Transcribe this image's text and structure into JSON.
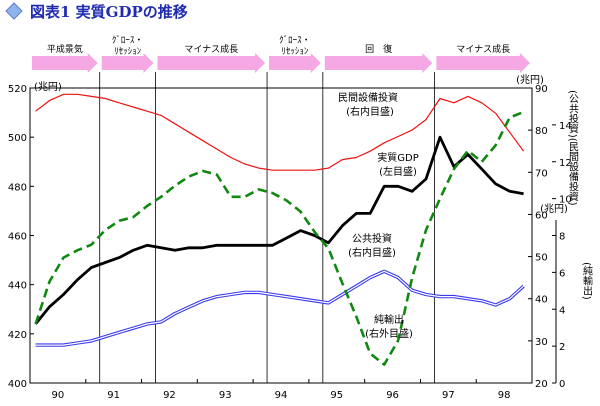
{
  "header": {
    "title": "図表1 実質GDPの推移"
  },
  "colors": {
    "phase_arrow": "#f6a8e4",
    "gdp": "#000000",
    "private_capex": "#ee1111",
    "public_investment": "#3a3af2",
    "net_exports": "#118811",
    "title": "#1f2bb0"
  },
  "chart_data": {
    "type": "line",
    "title": "図表1 実質GDPの推移",
    "x_axis": {
      "ticks": [
        "90",
        "91",
        "92",
        "93",
        "94",
        "95",
        "96",
        "97",
        "98"
      ],
      "range": [
        1989.5,
        1998.5
      ]
    },
    "axes": {
      "left": {
        "unit": "(兆円)",
        "range": [
          400,
          520
        ],
        "ticks": [
          400,
          420,
          440,
          460,
          480,
          500,
          520
        ]
      },
      "right_inner": {
        "unit": "(兆円)",
        "range": [
          20,
          90
        ],
        "ticks": [
          20,
          30,
          40,
          50,
          60,
          70,
          80,
          90
        ],
        "label": "(公共投資)(民間設備投資)"
      },
      "right_outer": {
        "unit": "(兆円)",
        "range": [
          0,
          16
        ],
        "ticks": [
          0,
          2,
          4,
          6,
          8,
          10,
          12,
          14
        ],
        "label": "(純輸出)"
      }
    },
    "phases": [
      {
        "label": "平成景気",
        "start": 1989.5,
        "end": 1990.75
      },
      {
        "label": "ｸﾞﾛｰｽ・ﾘｾｯｼｮﾝ",
        "start": 1990.75,
        "end": 1991.75
      },
      {
        "label": "マイナス成長",
        "start": 1991.75,
        "end": 1993.75
      },
      {
        "label": "ｸﾞﾛｰｽ・ﾘｾｯｼｮﾝ",
        "start": 1993.75,
        "end": 1994.75
      },
      {
        "label": "回　復",
        "start": 1994.75,
        "end": 1996.75
      },
      {
        "label": "マイナス成長",
        "start": 1996.75,
        "end": 1998.5
      }
    ],
    "series": [
      {
        "name": "実質GDP(左目盛)",
        "axis": "left",
        "style": "solid-thick",
        "x": [
          1989.6,
          1989.85,
          1990.1,
          1990.35,
          1990.6,
          1990.85,
          1991.1,
          1991.35,
          1991.6,
          1991.85,
          1992.1,
          1992.35,
          1992.6,
          1992.85,
          1993.1,
          1993.35,
          1993.6,
          1993.85,
          1994.1,
          1994.35,
          1994.6,
          1994.85,
          1995.1,
          1995.35,
          1995.6,
          1995.85,
          1996.1,
          1996.35,
          1996.6,
          1996.85,
          1997.1,
          1997.35,
          1997.6,
          1997.85,
          1998.1,
          1998.35
        ],
        "values": [
          424,
          431,
          436,
          442,
          447,
          449,
          451,
          454,
          456,
          455,
          454,
          455,
          455,
          456,
          456,
          456,
          456,
          456,
          459,
          462,
          460,
          457,
          464,
          469,
          469,
          480,
          480,
          478,
          483,
          500,
          488,
          493,
          487,
          481,
          478,
          477
        ]
      },
      {
        "name": "民間設備投資(右内目盛)",
        "axis": "right_inner",
        "style": "solid-thin",
        "x": [
          1989.6,
          1989.85,
          1990.1,
          1990.35,
          1990.6,
          1990.85,
          1991.1,
          1991.35,
          1991.6,
          1991.85,
          1992.1,
          1992.35,
          1992.6,
          1992.85,
          1993.1,
          1993.35,
          1993.6,
          1993.85,
          1994.1,
          1994.35,
          1994.6,
          1994.85,
          1995.1,
          1995.35,
          1995.6,
          1995.85,
          1996.1,
          1996.35,
          1996.6,
          1996.85,
          1997.1,
          1997.35,
          1997.6,
          1997.85,
          1998.1,
          1998.35
        ],
        "values": [
          84.5,
          87,
          88.5,
          88.5,
          88,
          87.5,
          86.5,
          85.5,
          84.5,
          83.5,
          81.5,
          79.5,
          77.5,
          75.5,
          73.5,
          72,
          71,
          70.5,
          70.5,
          70.5,
          70.5,
          71,
          73,
          73.5,
          75,
          77,
          78.5,
          80,
          82.5,
          87.5,
          86.5,
          88,
          86.5,
          84,
          79.5,
          75
        ]
      },
      {
        "name": "公共投資(右内目盛)",
        "axis": "right_inner",
        "style": "double-line",
        "x": [
          1989.6,
          1989.85,
          1990.1,
          1990.35,
          1990.6,
          1990.85,
          1991.1,
          1991.35,
          1991.6,
          1991.85,
          1992.1,
          1992.35,
          1992.6,
          1992.85,
          1993.1,
          1993.35,
          1993.6,
          1993.85,
          1994.1,
          1994.35,
          1994.6,
          1994.85,
          1995.1,
          1995.35,
          1995.6,
          1995.85,
          1996.1,
          1996.35,
          1996.6,
          1996.85,
          1997.1,
          1997.35,
          1997.6,
          1997.85,
          1998.1,
          1998.35
        ],
        "values": [
          29,
          29,
          29,
          29.5,
          30,
          31,
          32,
          33,
          34,
          34.5,
          36.5,
          38,
          39.5,
          40.5,
          41,
          41.5,
          41.5,
          41,
          40.5,
          40,
          39.5,
          39,
          41,
          43,
          45,
          46.5,
          45,
          42,
          41,
          40.5,
          40.5,
          40,
          39.5,
          38.5,
          40,
          43
        ]
      },
      {
        "name": "純輸出(右外目盛)",
        "axis": "right_outer",
        "style": "dashed",
        "x": [
          1989.6,
          1989.85,
          1990.1,
          1990.35,
          1990.6,
          1990.85,
          1991.1,
          1991.35,
          1991.6,
          1991.85,
          1992.1,
          1992.35,
          1992.6,
          1992.85,
          1993.1,
          1993.35,
          1993.6,
          1993.85,
          1994.1,
          1994.35,
          1994.6,
          1994.85,
          1995.1,
          1995.35,
          1995.6,
          1995.85,
          1996.1,
          1996.35,
          1996.6,
          1996.85,
          1997.1,
          1997.35,
          1997.6,
          1997.85,
          1998.1,
          1998.35
        ],
        "values": [
          3.2,
          5.5,
          6.8,
          7.2,
          7.5,
          8.3,
          8.8,
          9,
          9.6,
          10.1,
          10.7,
          11.2,
          11.5,
          11.3,
          10.1,
          10.1,
          10.5,
          10.3,
          9.9,
          9.3,
          8.2,
          7.3,
          5.4,
          3.6,
          1.6,
          1,
          2.3,
          5.7,
          8.3,
          10,
          11.6,
          12.6,
          12,
          12.9,
          14.4,
          14.7
        ]
      }
    ],
    "annotations": [
      {
        "text": "民間設備投資",
        "target": "民間設備投資(右内目盛)"
      },
      {
        "text": "(右内目盛)",
        "target": "民間設備投資(右内目盛)"
      },
      {
        "text": "実質GDP",
        "target": "実質GDP(左目盛)"
      },
      {
        "text": "(左目盛)",
        "target": "実質GDP(左目盛)"
      },
      {
        "text": "公共投資",
        "target": "公共投資(右内目盛)"
      },
      {
        "text": "(右内目盛)",
        "target": "公共投資(右内目盛)"
      },
      {
        "text": "純輸出",
        "target": "純輸出(右外目盛)"
      },
      {
        "text": "(右外目盛)",
        "target": "純輸出(右外目盛)"
      }
    ],
    "vertical_lines_at": [
      1990.75,
      1991.75,
      1993.75,
      1994.75,
      1996.75
    ],
    "grid": false,
    "legend": "inline-annotations"
  }
}
